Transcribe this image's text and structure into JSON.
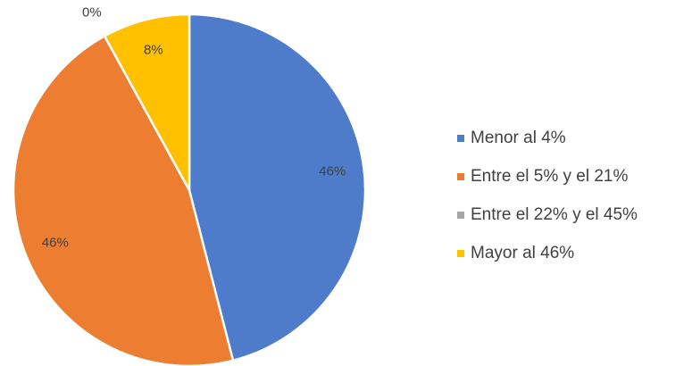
{
  "chart_data": {
    "type": "pie",
    "categories": [
      "Menor al 4%",
      "Entre el 5% y el 21%",
      "Entre el 22% y el 45%",
      "Mayor al 46%"
    ],
    "values": [
      46,
      46,
      0,
      8
    ],
    "value_labels": [
      "46%",
      "46%",
      "0%",
      "8%"
    ],
    "colors": [
      "#4e7ccb",
      "#ed7d31",
      "#a5a5a5",
      "#ffc000"
    ],
    "legend": "right"
  }
}
